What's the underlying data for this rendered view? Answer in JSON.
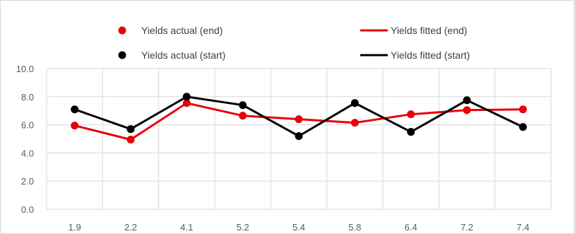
{
  "chart_data": {
    "type": "line",
    "title": "",
    "xlabel": "",
    "ylabel": "",
    "categories": [
      "1.9",
      "2.2",
      "4.1",
      "5.2",
      "5.4",
      "5.8",
      "6.4",
      "7.2",
      "7.4"
    ],
    "ylim": [
      0,
      10
    ],
    "yticks": [
      "0.0",
      "2.0",
      "4.0",
      "6.0",
      "8.0",
      "10.0"
    ],
    "grid": true,
    "legend_position": "top",
    "series": [
      {
        "name": "Yields actual (end)",
        "style": "marker",
        "color": "#e8000b",
        "values": [
          5.95,
          4.95,
          7.55,
          6.65,
          6.4,
          6.15,
          6.75,
          7.05,
          7.1
        ]
      },
      {
        "name": "Yields fitted (end)",
        "style": "line",
        "color": "#e8000b",
        "values": [
          5.95,
          4.95,
          7.55,
          6.65,
          6.4,
          6.15,
          6.75,
          7.05,
          7.1
        ]
      },
      {
        "name": "Yields actual (start)",
        "style": "marker",
        "color": "#000000",
        "values": [
          7.1,
          5.7,
          8.0,
          7.4,
          5.2,
          7.55,
          5.5,
          7.75,
          5.85
        ]
      },
      {
        "name": "Yields fitted (start)",
        "style": "line",
        "color": "#000000",
        "values": [
          7.1,
          5.7,
          8.0,
          7.4,
          5.2,
          7.55,
          5.5,
          7.75,
          5.85
        ]
      }
    ]
  }
}
